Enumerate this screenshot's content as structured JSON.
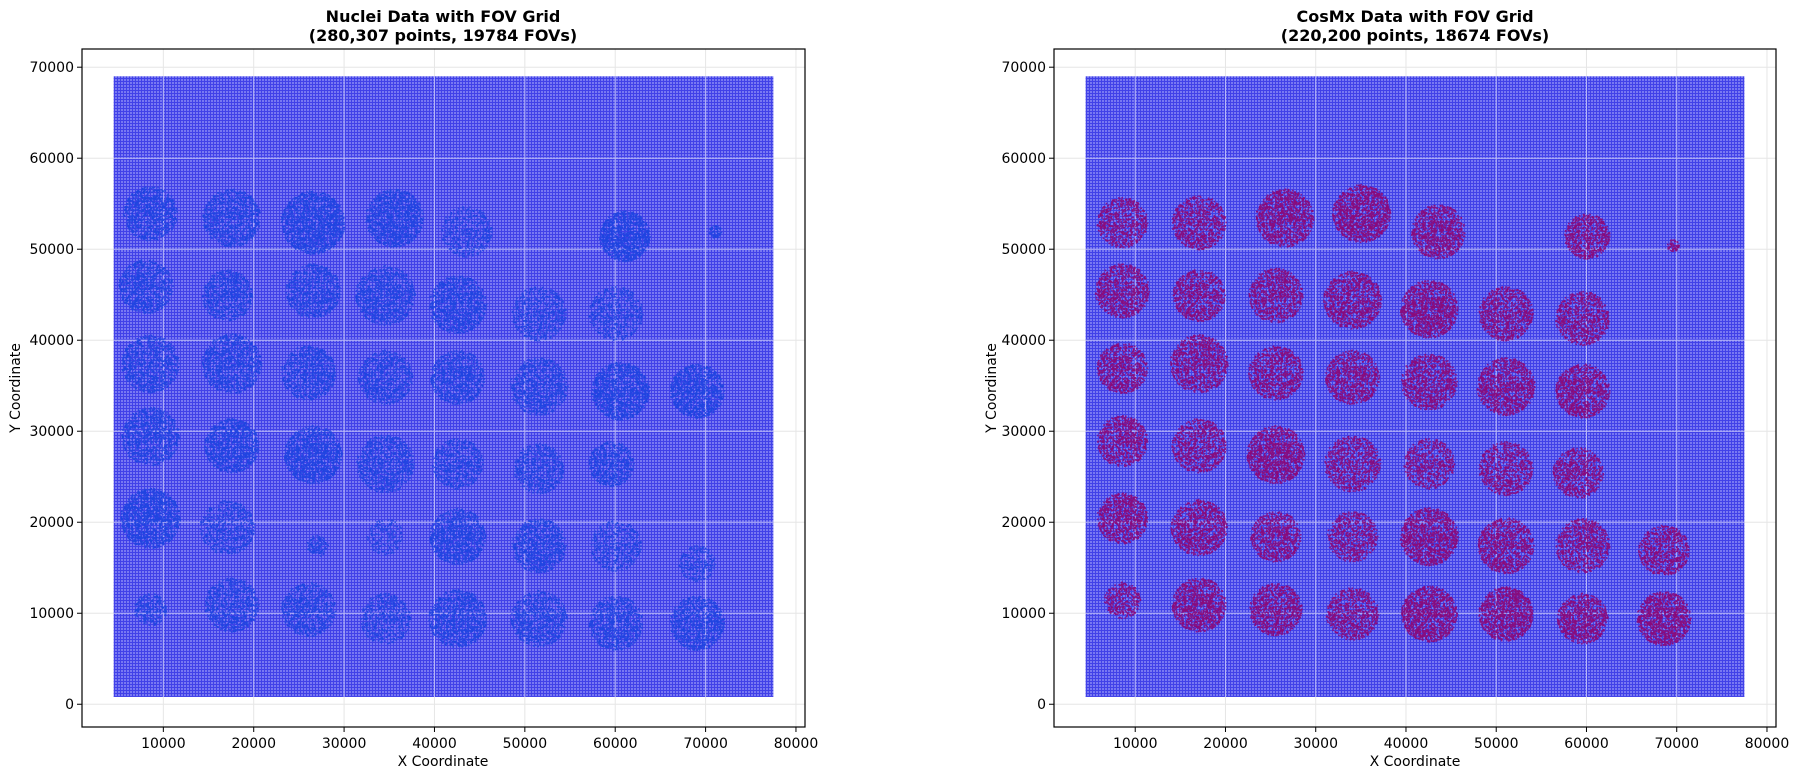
{
  "chart_data": [
    {
      "type": "scatter",
      "title": "Nuclei Data with FOV Grid",
      "subtitle": "(280,307 points, 19784 FOVs)",
      "xlabel": "X Coordinate",
      "ylabel": "Y Coordinate",
      "xlim": [
        1000,
        81000
      ],
      "ylim": [
        -2500,
        72000
      ],
      "xticks": [
        10000,
        20000,
        30000,
        40000,
        50000,
        60000,
        70000,
        80000
      ],
      "yticks": [
        0,
        10000,
        20000,
        30000,
        40000,
        50000,
        60000,
        70000
      ],
      "grid": true,
      "fov_grid": {
        "x_range": [
          4500,
          77500
        ],
        "y_range": [
          800,
          69000
        ],
        "color": "#6d6df0",
        "line_color": "#3a3ae6"
      },
      "series": [
        {
          "marker_color": "#1f45e0",
          "clusters": [
            {
              "x": 8500,
              "y": 54000,
              "r": 3000,
              "density": 0.65
            },
            {
              "x": 17500,
              "y": 53500,
              "r": 3200,
              "density": 0.6
            },
            {
              "x": 26500,
              "y": 53000,
              "r": 3500,
              "density": 0.8
            },
            {
              "x": 35500,
              "y": 53500,
              "r": 3200,
              "density": 0.75
            },
            {
              "x": 43500,
              "y": 52000,
              "r": 2800,
              "density": 0.4
            },
            {
              "x": 61000,
              "y": 51500,
              "r": 2800,
              "density": 0.95
            },
            {
              "x": 71000,
              "y": 52000,
              "r": 700,
              "density": 0.9
            },
            {
              "x": 8000,
              "y": 46000,
              "r": 3000,
              "density": 0.6
            },
            {
              "x": 17000,
              "y": 45000,
              "r": 2800,
              "density": 0.6
            },
            {
              "x": 26500,
              "y": 45500,
              "r": 3000,
              "density": 0.6
            },
            {
              "x": 34500,
              "y": 45000,
              "r": 3300,
              "density": 0.6
            },
            {
              "x": 42500,
              "y": 44000,
              "r": 3200,
              "density": 0.65
            },
            {
              "x": 51500,
              "y": 43000,
              "r": 3000,
              "density": 0.45
            },
            {
              "x": 60000,
              "y": 43000,
              "r": 3000,
              "density": 0.4
            },
            {
              "x": 8500,
              "y": 37500,
              "r": 3200,
              "density": 0.55
            },
            {
              "x": 17500,
              "y": 37500,
              "r": 3300,
              "density": 0.6
            },
            {
              "x": 26000,
              "y": 36500,
              "r": 3000,
              "density": 0.6
            },
            {
              "x": 34500,
              "y": 36000,
              "r": 3000,
              "density": 0.55
            },
            {
              "x": 42500,
              "y": 36000,
              "r": 3000,
              "density": 0.6
            },
            {
              "x": 51500,
              "y": 35000,
              "r": 3200,
              "density": 0.55
            },
            {
              "x": 60500,
              "y": 34500,
              "r": 3200,
              "density": 0.75
            },
            {
              "x": 69000,
              "y": 34500,
              "r": 3000,
              "density": 0.75
            },
            {
              "x": 8500,
              "y": 29500,
              "r": 3200,
              "density": 0.6
            },
            {
              "x": 17500,
              "y": 28500,
              "r": 3000,
              "density": 0.75
            },
            {
              "x": 26500,
              "y": 27500,
              "r": 3200,
              "density": 0.75
            },
            {
              "x": 34500,
              "y": 26500,
              "r": 3200,
              "density": 0.55
            },
            {
              "x": 42500,
              "y": 26500,
              "r": 2800,
              "density": 0.5
            },
            {
              "x": 51500,
              "y": 26000,
              "r": 2800,
              "density": 0.5
            },
            {
              "x": 59500,
              "y": 26500,
              "r": 2500,
              "density": 0.65
            },
            {
              "x": 8500,
              "y": 20500,
              "r": 3300,
              "density": 0.8
            },
            {
              "x": 17000,
              "y": 19500,
              "r": 3000,
              "density": 0.45
            },
            {
              "x": 27000,
              "y": 17500,
              "r": 1200,
              "density": 0.55
            },
            {
              "x": 34500,
              "y": 18500,
              "r": 2000,
              "density": 0.3
            },
            {
              "x": 42500,
              "y": 18500,
              "r": 3100,
              "density": 0.7
            },
            {
              "x": 51500,
              "y": 17500,
              "r": 3000,
              "density": 0.65
            },
            {
              "x": 60000,
              "y": 17500,
              "r": 2800,
              "density": 0.4
            },
            {
              "x": 69000,
              "y": 15500,
              "r": 2000,
              "density": 0.4
            },
            {
              "x": 8500,
              "y": 10500,
              "r": 1800,
              "density": 0.5
            },
            {
              "x": 17500,
              "y": 11000,
              "r": 3000,
              "density": 0.55
            },
            {
              "x": 26000,
              "y": 10500,
              "r": 3000,
              "density": 0.55
            },
            {
              "x": 34500,
              "y": 9500,
              "r": 2800,
              "density": 0.45
            },
            {
              "x": 42500,
              "y": 9500,
              "r": 3200,
              "density": 0.65
            },
            {
              "x": 51500,
              "y": 9500,
              "r": 3100,
              "density": 0.55
            },
            {
              "x": 60000,
              "y": 9000,
              "r": 3000,
              "density": 0.6
            },
            {
              "x": 69000,
              "y": 9000,
              "r": 3000,
              "density": 0.65
            }
          ]
        }
      ]
    },
    {
      "type": "scatter",
      "title": "CosMx Data with FOV Grid",
      "subtitle": "(220,200 points, 18674 FOVs)",
      "xlabel": "X Coordinate",
      "ylabel": "Y Coordinate",
      "xlim": [
        1000,
        81000
      ],
      "ylim": [
        -2500,
        72000
      ],
      "xticks": [
        10000,
        20000,
        30000,
        40000,
        50000,
        60000,
        70000,
        80000
      ],
      "yticks": [
        0,
        10000,
        20000,
        30000,
        40000,
        50000,
        60000,
        70000
      ],
      "grid": true,
      "fov_grid": {
        "x_range": [
          4500,
          77500
        ],
        "y_range": [
          800,
          69000
        ],
        "color": "#6d6df0",
        "line_color": "#3a3ae6"
      },
      "series": [
        {
          "marker_color": "#8b0a7a",
          "clusters": [
            {
              "x": 8500,
              "y": 53000,
              "r": 2800,
              "density": 0.6
            },
            {
              "x": 17000,
              "y": 53000,
              "r": 3000,
              "density": 0.65
            },
            {
              "x": 26500,
              "y": 53500,
              "r": 3200,
              "density": 0.8
            },
            {
              "x": 35000,
              "y": 54000,
              "r": 3200,
              "density": 0.9
            },
            {
              "x": 43500,
              "y": 52000,
              "r": 3000,
              "density": 0.75
            },
            {
              "x": 60000,
              "y": 51500,
              "r": 2500,
              "density": 0.75
            },
            {
              "x": 69500,
              "y": 50500,
              "r": 700,
              "density": 0.9
            },
            {
              "x": 8500,
              "y": 45500,
              "r": 3000,
              "density": 0.7
            },
            {
              "x": 17000,
              "y": 45000,
              "r": 2900,
              "density": 0.7
            },
            {
              "x": 25500,
              "y": 45000,
              "r": 3000,
              "density": 0.7
            },
            {
              "x": 34000,
              "y": 44500,
              "r": 3200,
              "density": 0.75
            },
            {
              "x": 42500,
              "y": 43500,
              "r": 3200,
              "density": 0.85
            },
            {
              "x": 51000,
              "y": 43000,
              "r": 3000,
              "density": 0.7
            },
            {
              "x": 59500,
              "y": 42500,
              "r": 3000,
              "density": 0.65
            },
            {
              "x": 8500,
              "y": 37000,
              "r": 2800,
              "density": 0.7
            },
            {
              "x": 17000,
              "y": 37500,
              "r": 3200,
              "density": 0.7
            },
            {
              "x": 25500,
              "y": 36500,
              "r": 3000,
              "density": 0.7
            },
            {
              "x": 34000,
              "y": 36000,
              "r": 3000,
              "density": 0.7
            },
            {
              "x": 42500,
              "y": 35500,
              "r": 3100,
              "density": 0.7
            },
            {
              "x": 51000,
              "y": 35000,
              "r": 3200,
              "density": 0.75
            },
            {
              "x": 59500,
              "y": 34500,
              "r": 3000,
              "density": 0.8
            },
            {
              "x": 8500,
              "y": 29000,
              "r": 2800,
              "density": 0.7
            },
            {
              "x": 17000,
              "y": 28500,
              "r": 3000,
              "density": 0.65
            },
            {
              "x": 25500,
              "y": 27500,
              "r": 3200,
              "density": 0.85
            },
            {
              "x": 34000,
              "y": 26500,
              "r": 3100,
              "density": 0.6
            },
            {
              "x": 42500,
              "y": 26500,
              "r": 2800,
              "density": 0.55
            },
            {
              "x": 51000,
              "y": 26000,
              "r": 3000,
              "density": 0.6
            },
            {
              "x": 59000,
              "y": 25500,
              "r": 2800,
              "density": 0.65
            },
            {
              "x": 8500,
              "y": 20500,
              "r": 2800,
              "density": 0.8
            },
            {
              "x": 17000,
              "y": 19500,
              "r": 3100,
              "density": 0.75
            },
            {
              "x": 25500,
              "y": 18500,
              "r": 2800,
              "density": 0.7
            },
            {
              "x": 34000,
              "y": 18500,
              "r": 2800,
              "density": 0.6
            },
            {
              "x": 42500,
              "y": 18500,
              "r": 3200,
              "density": 0.85
            },
            {
              "x": 51000,
              "y": 17500,
              "r": 3100,
              "density": 0.75
            },
            {
              "x": 59500,
              "y": 17500,
              "r": 3000,
              "density": 0.65
            },
            {
              "x": 68500,
              "y": 17000,
              "r": 2800,
              "density": 0.7
            },
            {
              "x": 8500,
              "y": 11500,
              "r": 2000,
              "density": 0.6
            },
            {
              "x": 17000,
              "y": 11000,
              "r": 3000,
              "density": 0.8
            },
            {
              "x": 25500,
              "y": 10500,
              "r": 2900,
              "density": 0.75
            },
            {
              "x": 34000,
              "y": 10000,
              "r": 2900,
              "density": 0.65
            },
            {
              "x": 42500,
              "y": 10000,
              "r": 3100,
              "density": 0.9
            },
            {
              "x": 51000,
              "y": 10000,
              "r": 3000,
              "density": 0.9
            },
            {
              "x": 59500,
              "y": 9500,
              "r": 2800,
              "density": 0.8
            },
            {
              "x": 68500,
              "y": 9500,
              "r": 3000,
              "density": 0.9
            }
          ]
        }
      ]
    }
  ]
}
